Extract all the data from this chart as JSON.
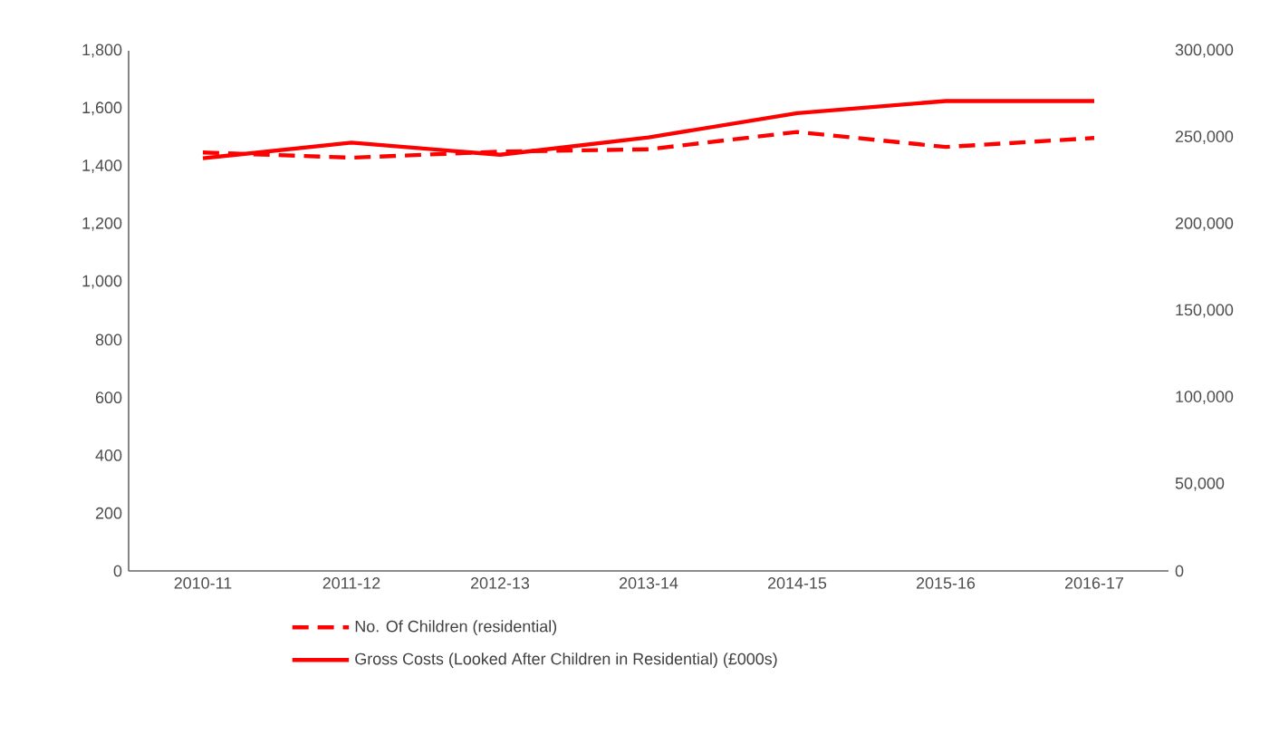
{
  "chart_data": {
    "type": "line",
    "categories": [
      "2010-11",
      "2011-12",
      "2012-13",
      "2013-14",
      "2014-15",
      "2015-16",
      "2016-17"
    ],
    "series": [
      {
        "name": "No. Of Children (residential)",
        "color": "#ff0000",
        "line_style": "dashed",
        "values": [
          1448,
          1430,
          1451,
          1459,
          1519,
          1467,
          1498
        ]
      },
      {
        "name": "Gross Costs (Looked After Children in Residential) (£000s)",
        "color": "#ff0000",
        "line_style": "solid",
        "axis": "y2",
        "values": [
          238000,
          247000,
          240000,
          250000,
          264000,
          271000,
          271000
        ]
      }
    ],
    "ylim": [
      0,
      1800
    ],
    "yticks": [
      {
        "value": 0,
        "label": "0"
      },
      {
        "value": 200,
        "label": "200"
      },
      {
        "value": 400,
        "label": "400"
      },
      {
        "value": 600,
        "label": "600"
      },
      {
        "value": 800,
        "label": "800"
      },
      {
        "value": 1000,
        "label": "1,000"
      },
      {
        "value": 1200,
        "label": "1,200"
      },
      {
        "value": 1400,
        "label": "1,400"
      },
      {
        "value": 1600,
        "label": "1,600"
      },
      {
        "value": 1800,
        "label": "1,800"
      }
    ],
    "y2lim": [
      0,
      300000
    ],
    "y2ticks": [
      {
        "value": 0,
        "label": "0"
      },
      {
        "value": 50000,
        "label": "50,000"
      },
      {
        "value": 100000,
        "label": "100,000"
      },
      {
        "value": 150000,
        "label": "150,000"
      },
      {
        "value": 200000,
        "label": "200,000"
      },
      {
        "value": 250000,
        "label": "250,000"
      },
      {
        "value": 300000,
        "label": "300,000"
      }
    ],
    "grid": false,
    "legend": "bottom",
    "marker": "none"
  }
}
